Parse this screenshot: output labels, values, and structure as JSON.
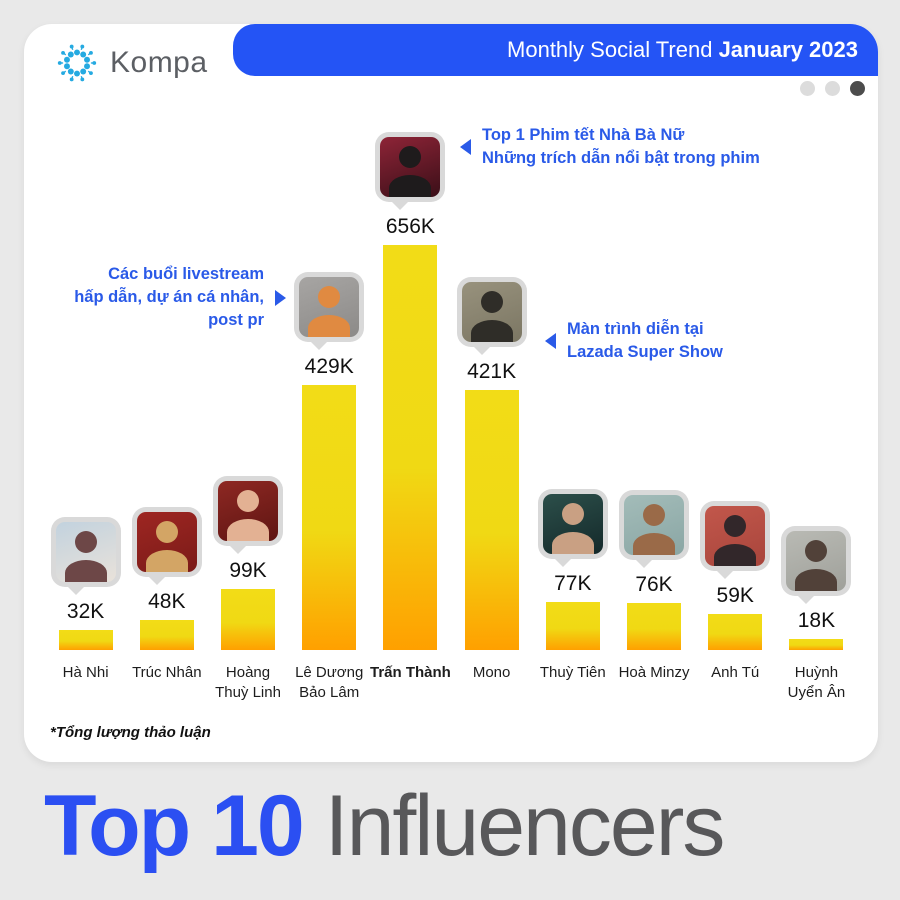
{
  "header": {
    "brand": "Kompa",
    "banner_regular": "Monthly Social Trend ",
    "banner_bold": "January 2023",
    "logo_color": "#25aae1",
    "banner_color": "#2454f5"
  },
  "pager": {
    "dots": [
      "inactive",
      "inactive",
      "active"
    ]
  },
  "chart_data": {
    "type": "bar",
    "title": "Top 10 Influencers",
    "subtitle": "Monthly Social Trend January 2023",
    "note": "*Tổng lượng thảo luận",
    "unit": "K",
    "ylim": [
      0,
      656
    ],
    "grid": false,
    "categories": [
      "Hà Nhi",
      "Trúc Nhân",
      "Hoàng Thuỳ Linh",
      "Lê Dương Bảo Lâm",
      "Trấn Thành",
      "Mono",
      "Thuỳ Tiên",
      "Hoà Minzy",
      "Anh Tú",
      "Huỳnh Uyển Ân"
    ],
    "values": [
      32,
      48,
      99,
      429,
      656,
      421,
      77,
      76,
      59,
      18
    ],
    "bar_color_top": "#f2dc17",
    "bar_color_bottom": "#ffa000",
    "influencers": [
      {
        "name": "Hà Nhi",
        "display_name": "Hà Nhi",
        "value_k": 32,
        "value_label": "32K",
        "highlighted": false,
        "avatar": {
          "bg1": "#c2d2de",
          "bg2": "#e9e2da",
          "fg": "#6d4747"
        }
      },
      {
        "name": "Trúc Nhân",
        "display_name": "Trúc Nhân",
        "value_k": 48,
        "value_label": "48K",
        "highlighted": false,
        "avatar": {
          "bg1": "#9e2622",
          "bg2": "#7a1b18",
          "fg": "#d3a565"
        }
      },
      {
        "name": "Hoàng Thuỳ Linh",
        "display_name": "Hoàng\nThuỳ Linh",
        "value_k": 99,
        "value_label": "99K",
        "highlighted": false,
        "avatar": {
          "bg1": "#8e2823",
          "bg2": "#5e1512",
          "fg": "#e3b193"
        }
      },
      {
        "name": "Lê Dương Bảo Lâm",
        "display_name": "Lê Dương\nBảo Lâm",
        "value_k": 429,
        "value_label": "429K",
        "highlighted": false,
        "avatar": {
          "bg1": "#a7a5a3",
          "bg2": "#8c8a88",
          "fg": "#e08a41"
        }
      },
      {
        "name": "Trấn Thành",
        "display_name": "Trấn Thành",
        "value_k": 656,
        "value_label": "656K",
        "highlighted": true,
        "avatar": {
          "bg1": "#8e2437",
          "bg2": "#3a0f18",
          "fg": "#1e1b1c"
        }
      },
      {
        "name": "Mono",
        "display_name": "Mono",
        "value_k": 421,
        "value_label": "421K",
        "highlighted": false,
        "avatar": {
          "bg1": "#98927d",
          "bg2": "#7b7663",
          "fg": "#2f2d28"
        }
      },
      {
        "name": "Thuỳ Tiên",
        "display_name": "Thuỳ Tiên",
        "value_k": 77,
        "value_label": "77K",
        "highlighted": false,
        "avatar": {
          "bg1": "#2c4f4a",
          "bg2": "#14292a",
          "fg": "#c9a083"
        }
      },
      {
        "name": "Hoà Minzy",
        "display_name": "Hoà Minzy",
        "value_k": 76,
        "value_label": "76K",
        "highlighted": false,
        "avatar": {
          "bg1": "#a3bcb9",
          "bg2": "#8aa6a4",
          "fg": "#9a6a48"
        }
      },
      {
        "name": "Anh Tú",
        "display_name": "Anh Tú",
        "value_k": 59,
        "value_label": "59K",
        "highlighted": false,
        "avatar": {
          "bg1": "#c2574b",
          "bg2": "#a8453c",
          "fg": "#32272a"
        }
      },
      {
        "name": "Huỳnh Uyển Ân",
        "display_name": "Huỳnh\nUyển Ân",
        "value_k": 18,
        "value_label": "18K",
        "highlighted": false,
        "avatar": {
          "bg1": "#b9bab4",
          "bg2": "#9fa09a",
          "fg": "#514139"
        }
      }
    ],
    "annotations": [
      {
        "target": "Trấn Thành",
        "direction": "left",
        "lines": "Top 1 Phim tết Nhà Bà Nữ\nNhững trích dẫn nổi bật trong phim"
      },
      {
        "target": "Lê Dương Bảo Lâm",
        "direction": "right",
        "lines": "Các buổi livestream\nhấp dẫn, dự án cá nhân,\npost pr"
      },
      {
        "target": "Mono",
        "direction": "left",
        "lines": "Màn trình diễn tại\nLazada Super Show"
      }
    ]
  },
  "footer_title": {
    "accent": "Top 10 ",
    "rest": "Influencers"
  }
}
